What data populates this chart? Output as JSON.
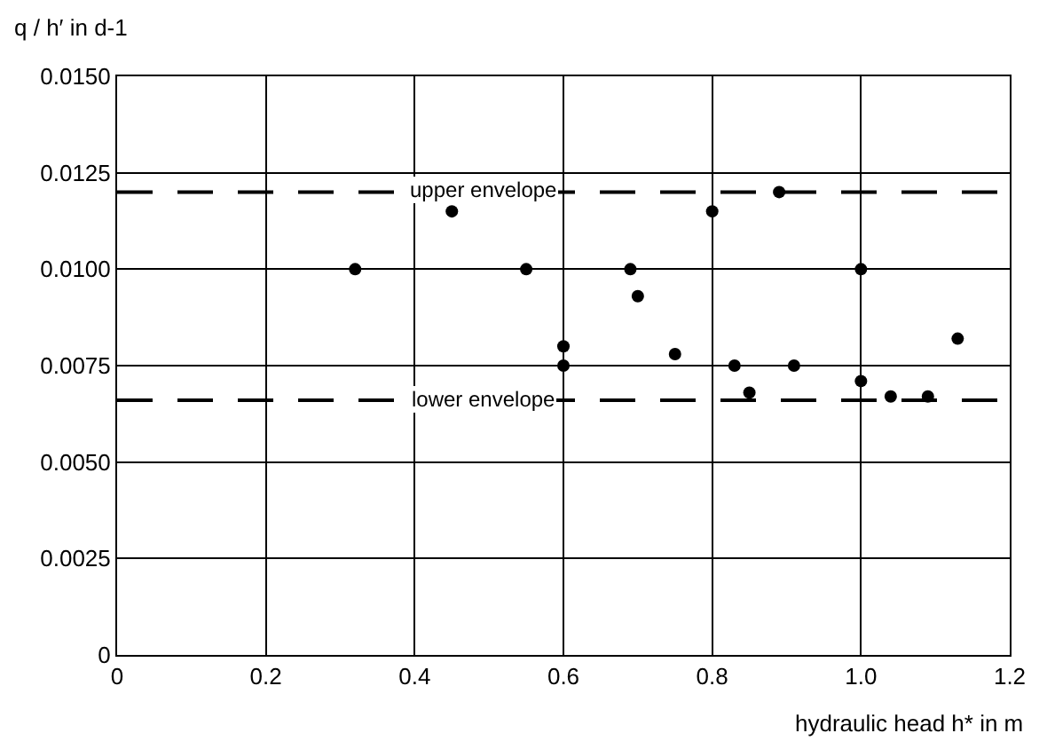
{
  "chart_data": {
    "type": "scatter",
    "xlabel": "hydraulic head h* in m",
    "ylabel": "q / h′ in d-1",
    "x": [
      0.32,
      0.45,
      0.55,
      0.6,
      0.6,
      0.69,
      0.7,
      0.75,
      0.8,
      0.83,
      0.85,
      0.89,
      0.91,
      1.0,
      1.0,
      1.04,
      1.09,
      1.13
    ],
    "values": [
      0.01,
      0.0115,
      0.01,
      0.008,
      0.0075,
      0.01,
      0.0093,
      0.0078,
      0.0115,
      0.0075,
      0.0068,
      0.012,
      0.0075,
      0.01,
      0.0071,
      0.0067,
      0.0067,
      0.0082
    ],
    "color": "#000000",
    "marker": "circle",
    "xlim": [
      0,
      1.2
    ],
    "xticks": [
      0,
      0.2,
      0.4,
      0.6,
      0.8,
      {
        "value": 1.0,
        "label": "1.0"
      },
      1.2
    ],
    "ylim": [
      0,
      0.015
    ],
    "yticks": [
      0,
      {
        "value": 0.0025,
        "label": "0.0025"
      },
      {
        "value": 0.005,
        "label": "0.0050"
      },
      {
        "value": 0.0075,
        "label": "0.0075"
      },
      {
        "value": 0.01,
        "label": "0.0100"
      },
      {
        "value": 0.0125,
        "label": "0.0125"
      },
      {
        "value": 0.015,
        "label": "0.0150"
      }
    ],
    "grid": true,
    "ref_lines": [
      {
        "axis": "y",
        "value": 0.012,
        "label": "upper envelope",
        "line_style": "dashed"
      },
      {
        "axis": "y",
        "value": 0.0066,
        "label": "lower envelope",
        "line_style": "dashed"
      }
    ]
  }
}
